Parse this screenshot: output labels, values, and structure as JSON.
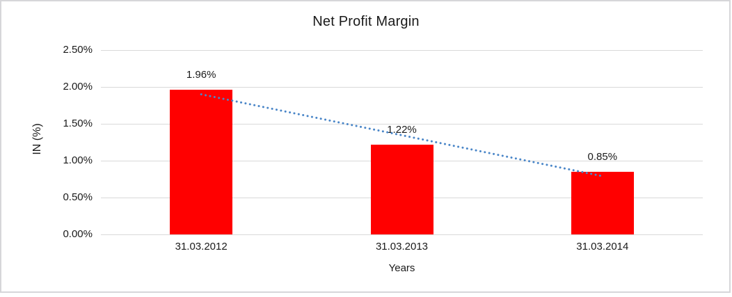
{
  "chart_data": {
    "type": "bar",
    "title": "Net Profit Margin",
    "xlabel": "Years",
    "ylabel": "IN (%)",
    "categories": [
      "31.03.2012",
      "31.03.2013",
      "31.03.2014"
    ],
    "values": [
      1.96,
      1.22,
      0.85
    ],
    "data_labels": [
      "1.96%",
      "1.22%",
      "0.85%"
    ],
    "yticks": [
      {
        "value": 0.0,
        "label": "0.00%"
      },
      {
        "value": 0.5,
        "label": "0.50%"
      },
      {
        "value": 1.0,
        "label": "1.00%"
      },
      {
        "value": 1.5,
        "label": "1.50%"
      },
      {
        "value": 2.0,
        "label": "2.00%"
      },
      {
        "value": 2.5,
        "label": "2.50%"
      }
    ],
    "ylim": [
      0,
      2.5
    ],
    "grid": true,
    "legend_position": "none",
    "bar_color": "#ff0000",
    "trendline": {
      "type": "linear",
      "style": "dotted",
      "color": "#4a86c8",
      "start_value": 1.9,
      "end_value": 0.79
    }
  },
  "colors": {
    "gridline": "#d9d9d9",
    "text": "#1a1a1a",
    "frame_border": "#d6d6d9",
    "background": "#ffffff"
  }
}
